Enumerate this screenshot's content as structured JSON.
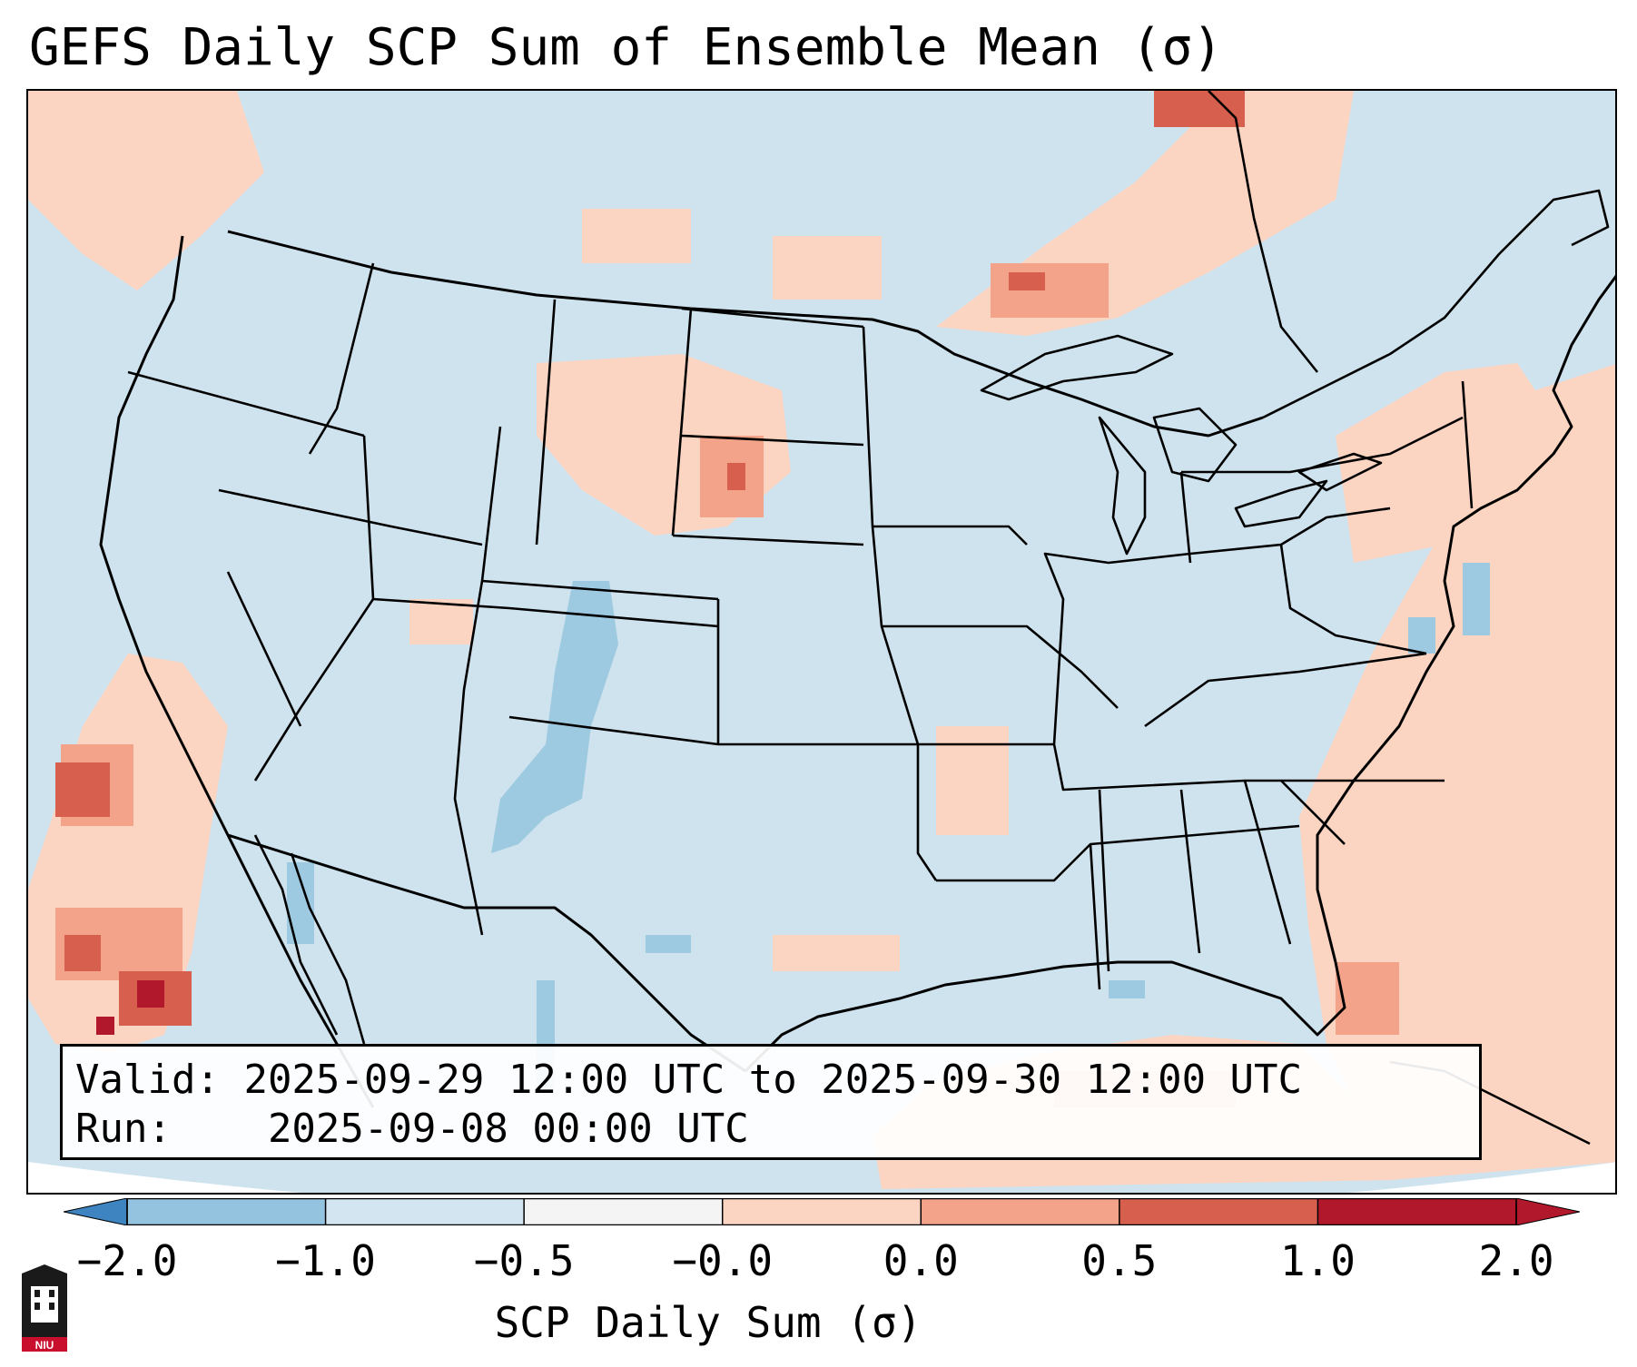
{
  "title": "GEFS Daily SCP Sum of Ensemble Mean (σ)",
  "info_box": {
    "valid_label": "Valid:",
    "valid_text": "2025-09-29 12:00 UTC to 2025-09-30 12:00 UTC",
    "run_label": "Run:",
    "run_text": "2025-09-08 00:00 UTC"
  },
  "colorbar": {
    "label": "SCP Daily Sum (σ)",
    "ticks": [
      "−2.0",
      "−1.0",
      "−0.5",
      "−0.0",
      "0.0",
      "0.5",
      "1.0",
      "2.0"
    ],
    "colors": [
      "#2f73b4",
      "#5b9fd0",
      "#9ecae1",
      "#d3e5f0",
      "#fbdcd0",
      "#f7b59e",
      "#e06b55",
      "#b41f2b"
    ],
    "bins": [
      "#3d84c1",
      "#93c3df",
      "#d3e5f0",
      "#f4f4f4",
      "#fcd5c2",
      "#f2a389",
      "#d6604d",
      "#b2182b"
    ]
  },
  "colors": {
    "background": "#cfe3ef",
    "positive_light": "#fbd3bf",
    "positive_mid": "#f2a389",
    "positive_strong": "#d6604d",
    "positive_max": "#b2182b",
    "negative_light": "#9ecae1",
    "boundary": "#000000"
  },
  "logo": {
    "name": "NIU"
  }
}
